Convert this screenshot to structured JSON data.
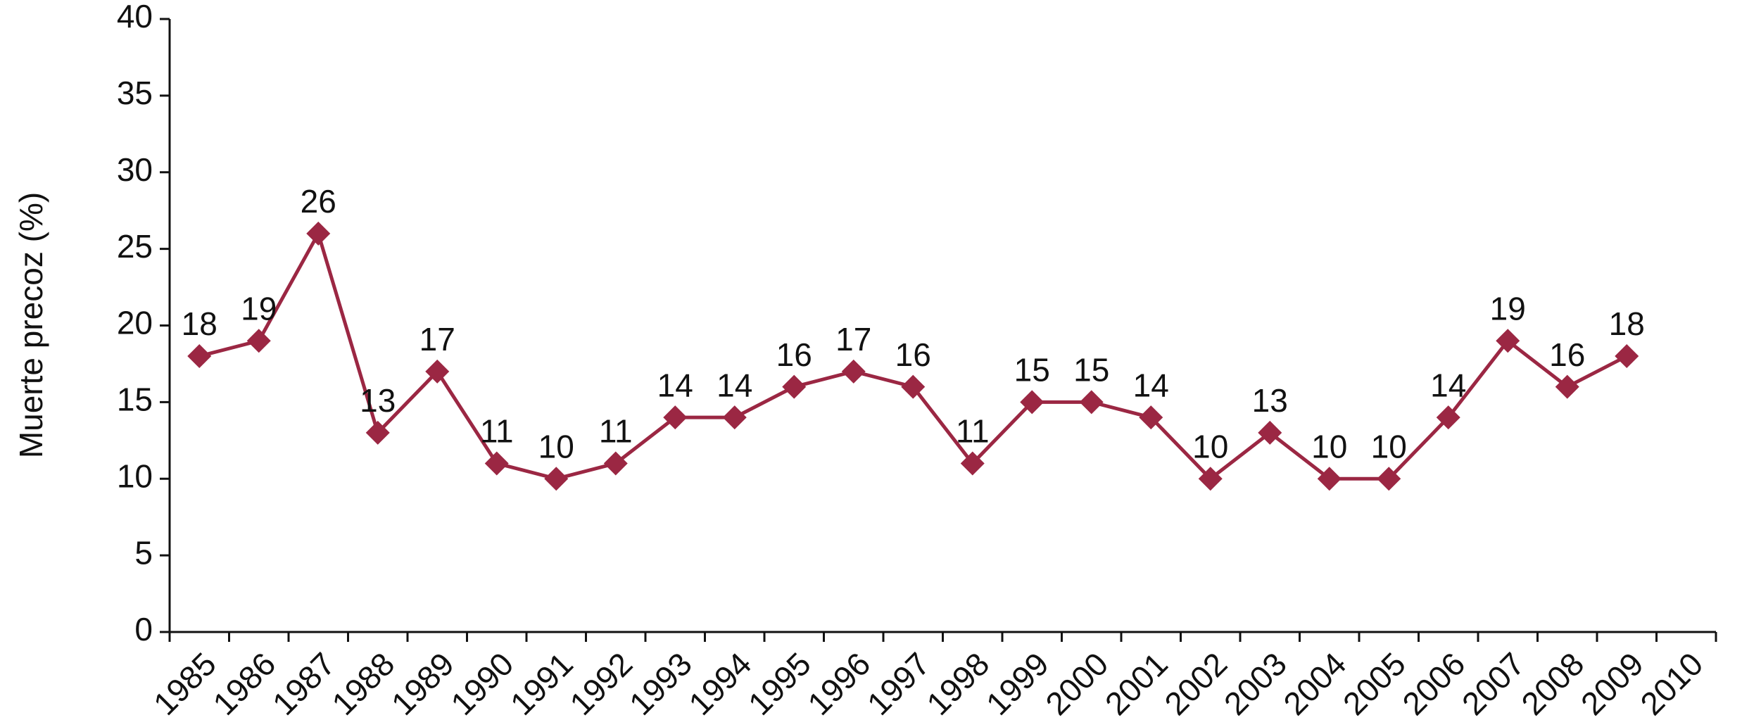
{
  "chart_data": {
    "type": "line",
    "y_label": "Muerte precoz (%)",
    "categories": [
      "1985",
      "1986",
      "1987",
      "1988",
      "1989",
      "1990",
      "1991",
      "1992",
      "1993",
      "1994",
      "1995",
      "1996",
      "1997",
      "1998",
      "1999",
      "2000",
      "2001",
      "2002",
      "2003",
      "2004",
      "2005",
      "2006",
      "2007",
      "2008",
      "2009",
      "2010"
    ],
    "series": [
      {
        "color": "#9b2743",
        "values": [
          18,
          19,
          26,
          13,
          17,
          11,
          10,
          11,
          14,
          14,
          16,
          17,
          16,
          11,
          15,
          15,
          14,
          10,
          13,
          10,
          10,
          14,
          19,
          16,
          18,
          null
        ]
      }
    ],
    "ylim": [
      0,
      40
    ],
    "yticks": [
      0,
      5,
      10,
      15,
      20,
      25,
      30,
      35,
      40
    ],
    "grid": false,
    "data_labels": true,
    "marker": "diamond"
  }
}
